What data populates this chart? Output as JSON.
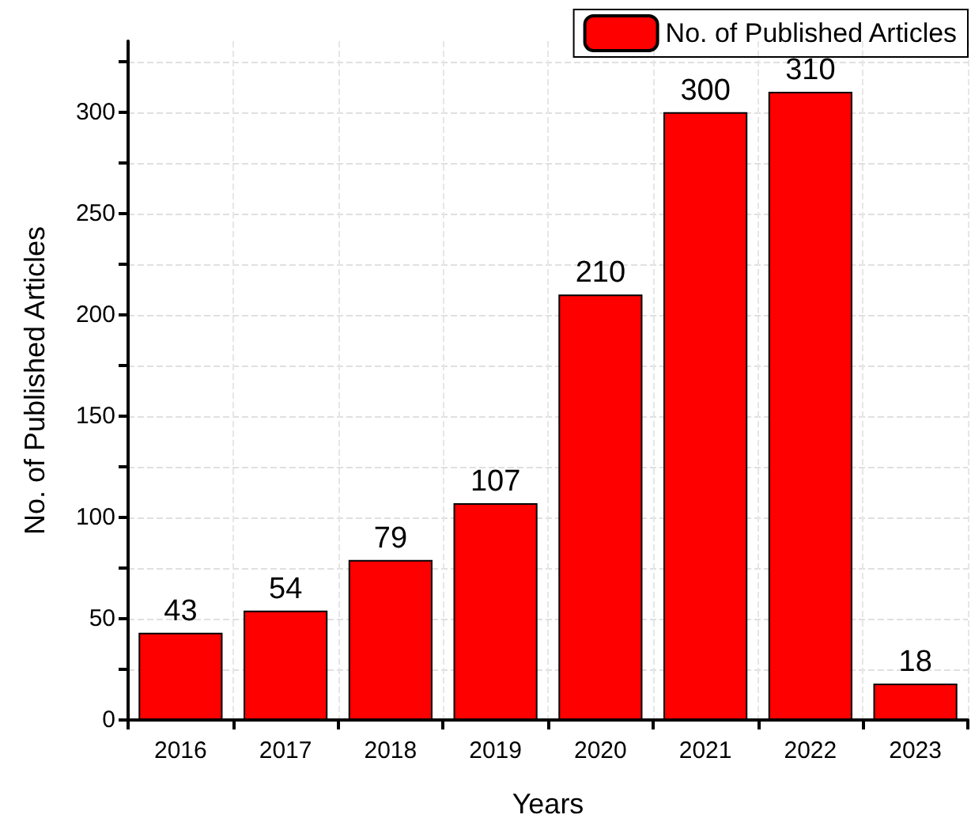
{
  "chart_data": {
    "type": "bar",
    "xlabel": "Years",
    "ylabel": "No. of Published Articles",
    "categories": [
      "2016",
      "2017",
      "2018",
      "2019",
      "2020",
      "2021",
      "2022",
      "2023"
    ],
    "series": [
      {
        "name": "No. of Published Articles",
        "color": "#ff0000",
        "values": [
          43,
          54,
          79,
          107,
          210,
          300,
          310,
          18
        ]
      }
    ],
    "ylim": [
      0,
      335
    ],
    "yticks": [
      0,
      {
        "value": 25,
        "label": null
      },
      50,
      {
        "value": 75,
        "label": null
      },
      100,
      {
        "value": 125,
        "label": null
      },
      150,
      {
        "value": 175,
        "label": null
      },
      200,
      {
        "value": 225,
        "label": null
      },
      250,
      {
        "value": 275,
        "label": null
      },
      300,
      {
        "value": 325,
        "label": null
      }
    ],
    "data_labels": true,
    "grid": true,
    "legend": "top right"
  }
}
